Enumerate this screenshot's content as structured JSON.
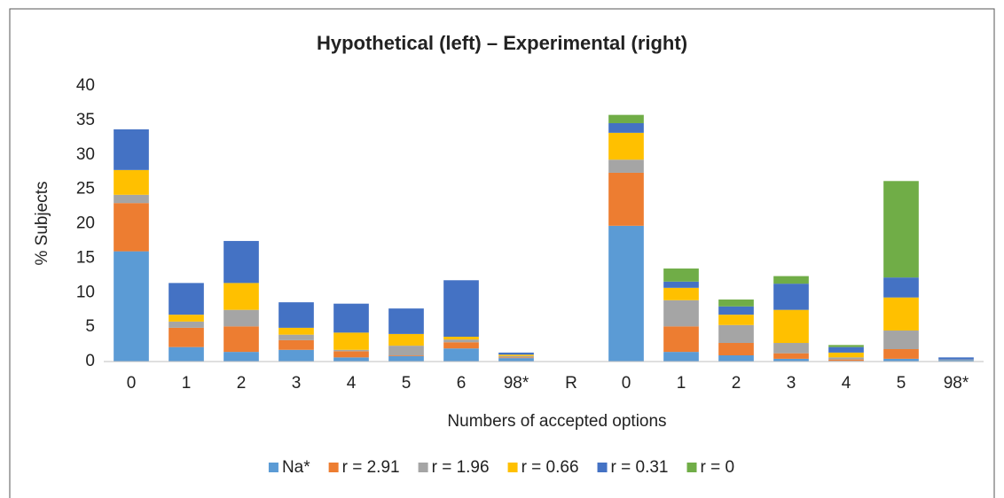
{
  "chart_data": {
    "type": "stacked_bar",
    "title": "Hypothetical (left) – Experimental (right)",
    "x_label": "Numbers of accepted options",
    "y_label": "% Subjects",
    "categories": [
      "0",
      "1",
      "2",
      "3",
      "4",
      "5",
      "6",
      "98*",
      "R",
      "0",
      "1",
      "2",
      "3",
      "4",
      "5",
      "98*"
    ],
    "series": [
      {
        "name": "Na*",
        "color": "#5b9bd5",
        "values": [
          16,
          2.1,
          1.4,
          1.7,
          0.6,
          0.8,
          1.9,
          0.5,
          null,
          19.7,
          1.4,
          0.9,
          0.4,
          0.1,
          0.4,
          0.2
        ]
      },
      {
        "name": "r = 2.91",
        "color": "#ed7d31",
        "values": [
          7,
          2.8,
          3.7,
          1.4,
          0.9,
          0.1,
          0.9,
          0.1,
          null,
          7.7,
          3.7,
          1.8,
          0.8,
          0.2,
          1.4,
          0
        ]
      },
      {
        "name": "r = 1.96",
        "color": "#a5a5a5",
        "values": [
          1.2,
          0.9,
          2.4,
          0.8,
          0.2,
          1.4,
          0.4,
          0.2,
          null,
          1.9,
          3.8,
          2.6,
          1.5,
          0.3,
          2.7,
          0.1
        ]
      },
      {
        "name": "r = 0.66",
        "color": "#ffc000",
        "values": [
          3.6,
          1.0,
          3.9,
          1.0,
          2.5,
          1.7,
          0.4,
          0.2,
          null,
          3.9,
          1.8,
          1.5,
          4.8,
          0.7,
          4.8,
          0
        ]
      },
      {
        "name": "r = 0.31",
        "color": "#4472c4",
        "values": [
          5.9,
          4.6,
          6.1,
          3.7,
          4.2,
          3.7,
          8.2,
          0.3,
          null,
          1.4,
          0.9,
          1.2,
          3.8,
          0.8,
          2.9,
          0.3
        ]
      },
      {
        "name": "r = 0",
        "color": "#70ad47",
        "values": [
          0,
          0,
          0,
          0,
          0,
          0,
          0,
          0,
          null,
          1.2,
          1.9,
          1.0,
          1.1,
          0.3,
          14.0,
          0
        ]
      }
    ],
    "ylim": [
      0,
      40
    ],
    "yticks": [
      0,
      5,
      10,
      15,
      20,
      25,
      30,
      35,
      40
    ],
    "grid": false,
    "legend": "bottom"
  }
}
